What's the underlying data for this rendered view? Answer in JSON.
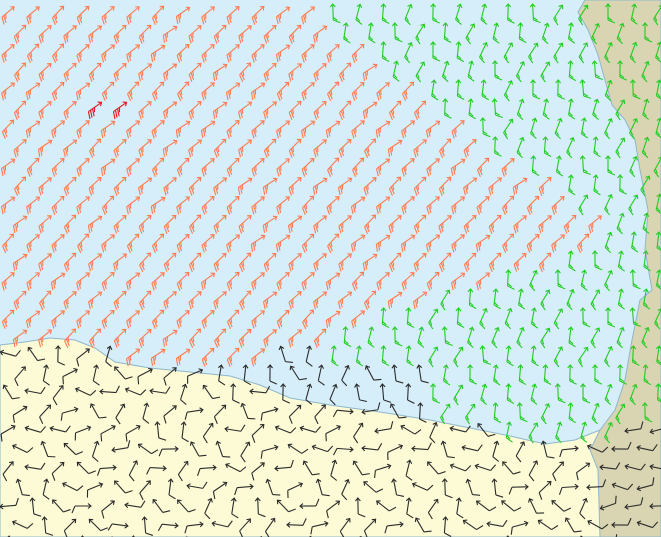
{
  "map": {
    "colors": {
      "sea": "#d6eefa",
      "land_south": "#fdfbd6",
      "land_east": "#d9d4b1",
      "coastline": "#8fb7cc",
      "wind_strong": "#ff7a4f",
      "wind_max": "#e8141e",
      "wind_moderate": "#22cc22",
      "wind_light": "#2b2b2b"
    },
    "layer": "wind-barbs"
  }
}
